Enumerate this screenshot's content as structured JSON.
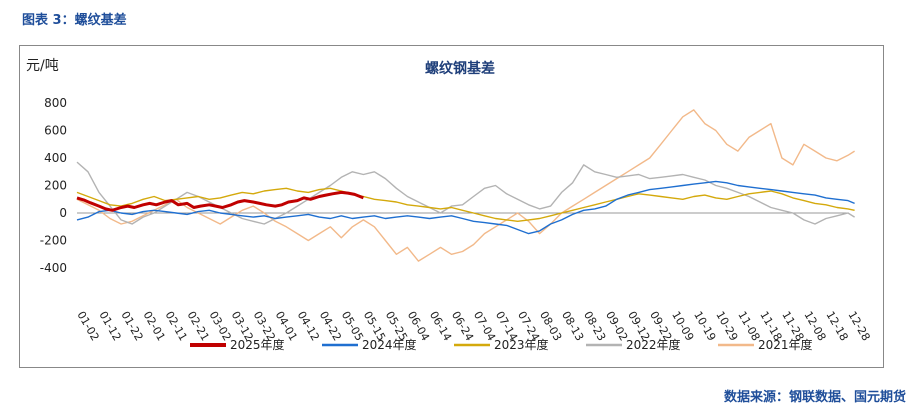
{
  "figure_title": "图表 3：螺纹基差",
  "source": "数据来源：钢联数据、国元期货",
  "chart_data": {
    "type": "line",
    "title": "螺纹钢基差",
    "ylabel": "元/吨",
    "ylim": [
      -400,
      800
    ],
    "yticks": [
      -400,
      -200,
      0,
      200,
      400,
      600,
      800
    ],
    "x_ticks": [
      "01-02",
      "01-12",
      "01-22",
      "02-01",
      "02-11",
      "02-21",
      "03-02",
      "03-12",
      "03-22",
      "04-01",
      "04-12",
      "04-22",
      "05-05",
      "05-15",
      "05-25",
      "06-04",
      "06-14",
      "06-24",
      "07-04",
      "07-14",
      "07-24",
      "08-03",
      "08-13",
      "08-23",
      "09-02",
      "09-12",
      "09-22",
      "10-09",
      "10-19",
      "10-29",
      "11-08",
      "11-18",
      "11-28",
      "12-08",
      "12-18",
      "12-28"
    ],
    "grid": false,
    "legend_position": "bottom",
    "colors": {
      "2025年度": "#c00000",
      "2024年度": "#1f6fd0",
      "2023年度": "#d4a90c",
      "2022年度": "#b3b3b3",
      "2021年度": "#f2b98a"
    },
    "series": [
      {
        "name": "2025年度",
        "x": [
          0,
          0.3,
          0.6,
          1,
          1.3,
          1.6,
          2,
          2.3,
          2.6,
          3,
          3.3,
          3.6,
          4,
          4.3,
          4.6,
          5,
          5.3,
          5.6,
          6,
          6.3,
          6.6,
          7,
          7.3,
          7.6,
          8,
          8.3,
          8.6,
          9,
          9.3,
          9.6,
          10,
          10.3,
          10.6,
          11,
          11.3,
          11.6,
          12,
          12.3,
          12.6,
          13
        ],
        "values": [
          110,
          95,
          75,
          50,
          30,
          20,
          40,
          50,
          40,
          60,
          70,
          60,
          80,
          90,
          60,
          70,
          40,
          50,
          60,
          50,
          40,
          60,
          80,
          90,
          80,
          70,
          60,
          50,
          60,
          80,
          90,
          110,
          100,
          120,
          130,
          140,
          150,
          145,
          135,
          110
        ]
      },
      {
        "name": "2024年度",
        "x": [
          0,
          0.5,
          1,
          1.5,
          2,
          2.5,
          3,
          3.5,
          4,
          4.5,
          5,
          5.5,
          6,
          6.5,
          7,
          7.5,
          8,
          8.5,
          9,
          9.5,
          10,
          10.5,
          11,
          11.5,
          12,
          12.5,
          13,
          13.5,
          14,
          14.5,
          15,
          15.5,
          16,
          16.5,
          17,
          17.5,
          18,
          18.5,
          19,
          19.5,
          20,
          20.5,
          21,
          21.5,
          22,
          22.5,
          23,
          23.5,
          24,
          24.5,
          25,
          25.5,
          26,
          26.5,
          27,
          27.5,
          28,
          28.5,
          29,
          29.5,
          30,
          30.5,
          31,
          31.5,
          32,
          32.5,
          33,
          33.5,
          34,
          34.5,
          35,
          35.3
        ],
        "values": [
          -50,
          -30,
          10,
          20,
          0,
          -10,
          10,
          20,
          10,
          0,
          -10,
          10,
          20,
          0,
          -10,
          -20,
          -30,
          -20,
          -40,
          -30,
          -20,
          -10,
          -30,
          -40,
          -20,
          -40,
          -30,
          -20,
          -40,
          -30,
          -20,
          -30,
          -40,
          -30,
          -20,
          -40,
          -60,
          -70,
          -80,
          -90,
          -120,
          -150,
          -130,
          -80,
          -50,
          -10,
          20,
          30,
          50,
          100,
          130,
          150,
          170,
          180,
          190,
          200,
          210,
          220,
          230,
          220,
          200,
          190,
          180,
          170,
          160,
          150,
          140,
          130,
          110,
          100,
          90,
          70
        ]
      },
      {
        "name": "2023年度",
        "x": [
          0,
          0.5,
          1,
          1.5,
          2,
          2.5,
          3,
          3.5,
          4,
          4.5,
          5,
          5.5,
          6,
          6.5,
          7,
          7.5,
          8,
          8.5,
          9,
          9.5,
          10,
          10.5,
          11,
          11.5,
          12,
          12.5,
          13,
          13.5,
          14,
          14.5,
          15,
          15.5,
          16,
          16.5,
          17,
          17.5,
          18,
          18.5,
          19,
          19.5,
          20,
          20.5,
          21,
          21.5,
          22,
          22.5,
          23,
          23.5,
          24,
          24.5,
          25,
          25.5,
          26,
          26.5,
          27,
          27.5,
          28,
          28.5,
          29,
          29.5,
          30,
          30.5,
          31,
          31.5,
          32,
          32.5,
          33,
          33.5,
          34,
          34.5,
          35,
          35.3
        ],
        "values": [
          150,
          120,
          90,
          60,
          50,
          70,
          100,
          120,
          90,
          100,
          110,
          120,
          100,
          110,
          130,
          150,
          140,
          160,
          170,
          180,
          160,
          150,
          170,
          180,
          160,
          140,
          120,
          100,
          90,
          80,
          60,
          50,
          40,
          30,
          40,
          20,
          0,
          -20,
          -40,
          -50,
          -60,
          -50,
          -40,
          -20,
          0,
          20,
          40,
          60,
          80,
          100,
          120,
          140,
          130,
          120,
          110,
          100,
          120,
          130,
          110,
          100,
          120,
          140,
          150,
          160,
          140,
          110,
          90,
          70,
          60,
          40,
          30,
          20
        ]
      },
      {
        "name": "2022年度",
        "x": [
          0,
          0.5,
          1,
          1.5,
          2,
          2.5,
          3,
          3.5,
          4,
          4.5,
          5,
          5.5,
          6,
          6.5,
          7,
          7.5,
          8,
          8.5,
          9,
          9.5,
          10,
          10.5,
          11,
          11.5,
          12,
          12.5,
          13,
          13.5,
          14,
          14.5,
          15,
          15.5,
          16,
          16.5,
          17,
          17.5,
          18,
          18.5,
          19,
          19.5,
          20,
          20.5,
          21,
          21.5,
          22,
          22.5,
          23,
          23.5,
          24,
          24.5,
          25,
          25.5,
          26,
          26.5,
          27,
          27.5,
          28,
          28.5,
          29,
          29.5,
          30,
          30.5,
          31,
          31.5,
          32,
          32.5,
          33,
          33.5,
          34,
          34.5,
          35,
          35.3
        ],
        "values": [
          370,
          300,
          150,
          50,
          -50,
          -80,
          -30,
          0,
          50,
          100,
          150,
          120,
          80,
          40,
          0,
          -40,
          -60,
          -80,
          -40,
          0,
          50,
          100,
          150,
          200,
          260,
          300,
          280,
          300,
          250,
          180,
          120,
          80,
          40,
          0,
          50,
          60,
          120,
          180,
          200,
          140,
          100,
          60,
          30,
          50,
          150,
          220,
          350,
          300,
          280,
          260,
          270,
          280,
          250,
          260,
          270,
          280,
          260,
          240,
          200,
          180,
          150,
          120,
          80,
          40,
          20,
          0,
          -50,
          -80,
          -40,
          -20,
          0,
          -30
        ]
      },
      {
        "name": "2021年度",
        "x": [
          0,
          0.5,
          1,
          1.5,
          2,
          2.5,
          3,
          3.5,
          4,
          4.5,
          5,
          5.5,
          6,
          6.5,
          7,
          7.5,
          8,
          8.5,
          9,
          9.5,
          10,
          10.5,
          11,
          11.5,
          12,
          12.5,
          13,
          13.5,
          14,
          14.5,
          15,
          15.5,
          16,
          16.5,
          17,
          17.5,
          18,
          18.5,
          19,
          19.5,
          20,
          20.5,
          21,
          21.5,
          22,
          22.5,
          23,
          23.5,
          24,
          24.5,
          25,
          25.5,
          26,
          26.5,
          27,
          27.5,
          28,
          28.5,
          29,
          29.5,
          30,
          30.5,
          31,
          31.5,
          32,
          32.5,
          33,
          33.5,
          34,
          34.5,
          35,
          35.3
        ],
        "values": [
          100,
          60,
          20,
          -40,
          -80,
          -60,
          -20,
          20,
          60,
          100,
          40,
          0,
          -40,
          -80,
          -30,
          20,
          50,
          0,
          -60,
          -100,
          -150,
          -200,
          -150,
          -100,
          -180,
          -100,
          -50,
          -100,
          -200,
          -300,
          -250,
          -350,
          -300,
          -250,
          -300,
          -280,
          -230,
          -150,
          -100,
          -50,
          0,
          -60,
          -150,
          -80,
          0,
          50,
          100,
          150,
          200,
          250,
          300,
          350,
          400,
          500,
          600,
          700,
          750,
          650,
          600,
          500,
          450,
          550,
          600,
          650,
          400,
          350,
          500,
          450,
          400,
          380,
          420,
          450
        ]
      }
    ]
  }
}
